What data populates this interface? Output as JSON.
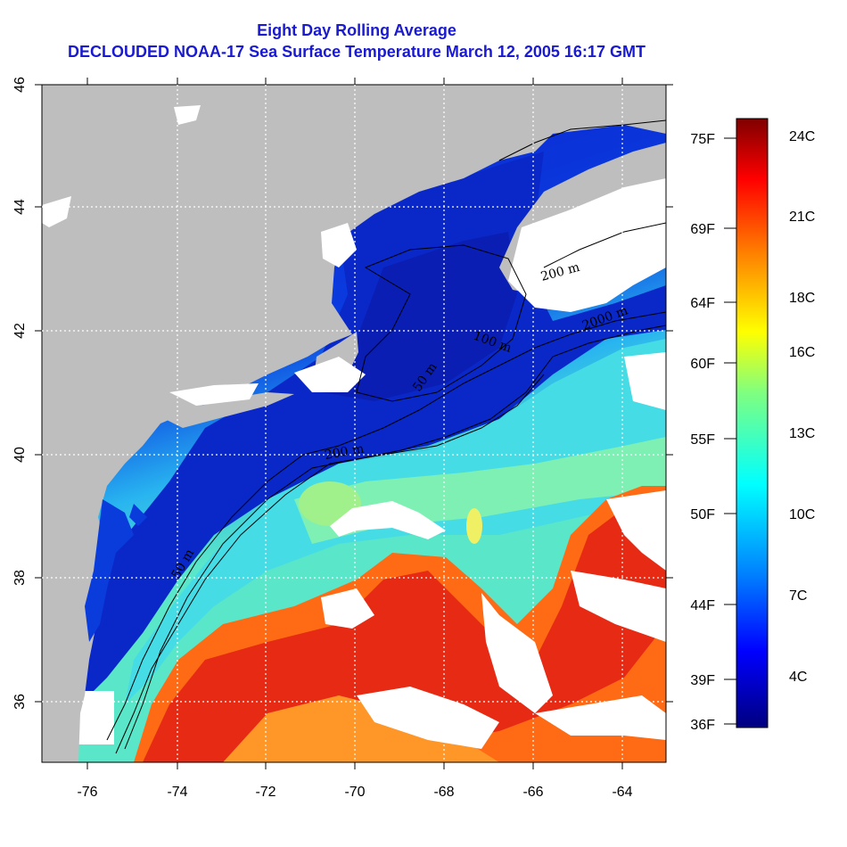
{
  "title": {
    "line1": "Eight Day Rolling Average",
    "line2": "DECLOUDED NOAA-17 Sea Surface Temperature March 12, 2005 16:17 GMT"
  },
  "axes": {
    "x_ticks": [
      "-76",
      "-74",
      "-72",
      "-70",
      "-68",
      "-66",
      "-64"
    ],
    "y_ticks": [
      "36",
      "38",
      "40",
      "42",
      "44",
      "46"
    ]
  },
  "contour_labels": [
    "50 m",
    "50 m",
    "200 m",
    "100 m",
    "2000 m",
    "200 m"
  ],
  "colorbar": {
    "celsius": [
      "24C",
      "21C",
      "18C",
      "16C",
      "13C",
      "10C",
      "7C",
      "4C"
    ],
    "fahrenheit": [
      "75F",
      "69F",
      "64F",
      "60F",
      "55F",
      "50F",
      "44F",
      "39F",
      "36F"
    ],
    "colors": [
      "#00007f",
      "#0000ff",
      "#007fff",
      "#00ffff",
      "#7fff7f",
      "#ffff00",
      "#ff7f00",
      "#ff0000",
      "#7f0000"
    ]
  },
  "map_colors": {
    "land": "#bebebe",
    "cloud": "#ffffff",
    "cold": "#0a28c8",
    "cool": "#1e6ef0",
    "mid": "#3cd2e6",
    "warm": "#ff5a14",
    "hot": "#e62a14"
  }
}
